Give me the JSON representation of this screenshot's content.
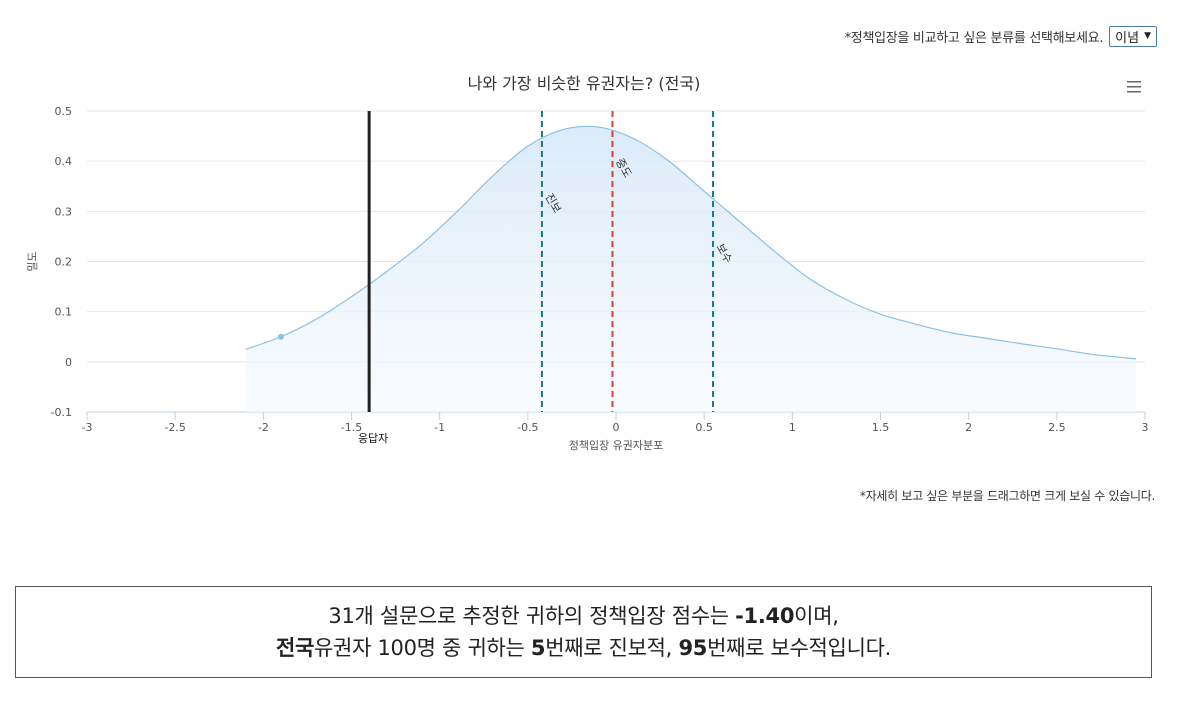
{
  "header": {
    "prompt": "*정책입장을 비교하고 싶은 분류를 선택해보세요.",
    "select_value": "이념",
    "select_arrow": "▼"
  },
  "chart_data": {
    "type": "area",
    "title": "나와 가장 비슷한 유권자는?  (전국)",
    "xlabel": "정책입장 유권자분포",
    "ylabel": "밀도",
    "xlim": [
      -3,
      3
    ],
    "ylim": [
      -0.1,
      0.5
    ],
    "x_ticks": [
      "-3",
      "-2.5",
      "-2",
      "-1.5",
      "-1",
      "-0.5",
      "0",
      "0.5",
      "1",
      "1.5",
      "2",
      "2.5",
      "3"
    ],
    "y_ticks": [
      "0.5",
      "0.4",
      "0.3",
      "0.2",
      "0.1",
      "0",
      "-0.1"
    ],
    "grid": true,
    "series": [
      {
        "x": [
          -2.1,
          -1.9,
          -1.7,
          -1.5,
          -1.3,
          -1.1,
          -0.9,
          -0.7,
          -0.5,
          -0.3,
          -0.1,
          0.1,
          0.3,
          0.5,
          0.7,
          0.9,
          1.1,
          1.3,
          1.5,
          1.7,
          1.9,
          2.1,
          2.3,
          2.5,
          2.7,
          2.95
        ],
        "y": [
          0.025,
          0.05,
          0.085,
          0.13,
          0.18,
          0.235,
          0.3,
          0.37,
          0.43,
          0.463,
          0.468,
          0.445,
          0.4,
          0.34,
          0.28,
          0.22,
          0.165,
          0.125,
          0.095,
          0.075,
          0.058,
          0.047,
          0.036,
          0.026,
          0.015,
          0.006
        ]
      }
    ],
    "highlight_point": {
      "x": -1.9,
      "y": 0.05
    },
    "reference_lines": [
      {
        "x": -1.4,
        "label": "응답자",
        "color": "#222222",
        "style": "solid"
      },
      {
        "x": -0.42,
        "label": "진보",
        "color": "#1a7a7a",
        "style": "dashed"
      },
      {
        "x": -0.02,
        "label": "중도",
        "color": "#d9403a",
        "style": "dashed"
      },
      {
        "x": 0.55,
        "label": "보수",
        "color": "#1a7a8a",
        "style": "dashed"
      }
    ],
    "colors": {
      "line": "#8cc0e6",
      "fill": "#dcebf9",
      "grid": "#e6e6e6",
      "axis": "#c0d0e0"
    }
  },
  "drag_note": "*자세히 보고 싶은 부분을 드래그하면 크게 보실 수 있습니다.",
  "summary": {
    "line1_pre": "31개 설문으로 추정한 귀하의 정책입장 점수는 ",
    "score": "-1.40",
    "line1_post": "이며,",
    "region": "전국",
    "line2_a": "유권자 100명 중 귀하는 ",
    "rank_progressive": "5",
    "line2_b": "번째로 진보적, ",
    "rank_conservative": "95",
    "line2_c": "번째로 보수적입니다."
  }
}
